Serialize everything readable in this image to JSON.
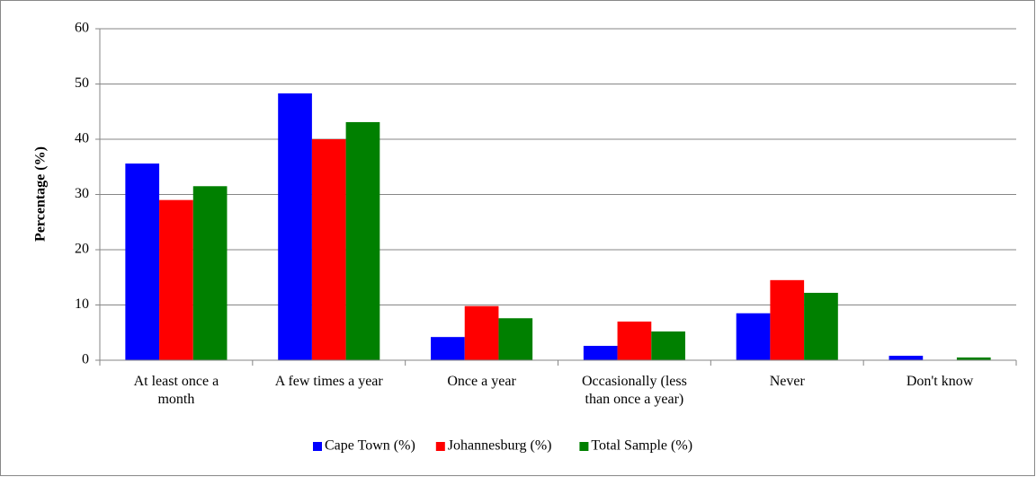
{
  "chart_data": {
    "type": "bar",
    "y_axis_label": "Percentage (%)",
    "categories": [
      "At least once a month",
      "A few times a year",
      "Once a year",
      "Occasionally (less than once a year)",
      "Never",
      "Don't know"
    ],
    "series": [
      {
        "name": "Cape Town (%)",
        "color": "#0000ff",
        "values": [
          35.6,
          48.3,
          4.2,
          2.6,
          8.5,
          0.8
        ]
      },
      {
        "name": "Johannesburg (%)",
        "color": "#ff0000",
        "values": [
          29,
          40,
          9.8,
          7,
          14.5,
          0
        ]
      },
      {
        "name": "Total Sample (%)",
        "color": "#008000",
        "values": [
          31.5,
          43.1,
          7.6,
          5.2,
          12.2,
          0.5
        ]
      }
    ],
    "ylim": [
      0,
      60
    ],
    "yticks": [
      0,
      10,
      20,
      30,
      40,
      50,
      60
    ],
    "grid": true,
    "legend": "bottom"
  }
}
